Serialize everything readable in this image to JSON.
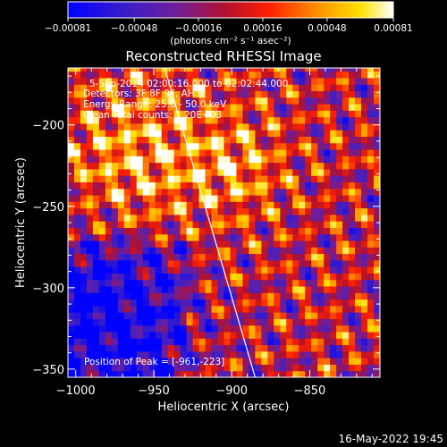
{
  "chart_data": {
    "type": "heatmap",
    "title": "Reconstructed RHESSI Image",
    "xlabel": "Heliocentric X (arcsec)",
    "ylabel": "Heliocentric Y (arcsec)",
    "xlim": [
      -1005,
      -805
    ],
    "ylim": [
      -355,
      -165
    ],
    "x_ticks": [
      -1000,
      -950,
      -900,
      -850
    ],
    "y_ticks": [
      -350,
      -300,
      -250,
      -200
    ],
    "x_tick_labels": [
      "−1000",
      "−950",
      "−900",
      "−850"
    ],
    "y_tick_labels": [
      "−350",
      "−300",
      "−250",
      "−200"
    ],
    "colorbar": {
      "min": -0.00081,
      "max": 0.00081,
      "ticks": [
        "-0.00081",
        "-0.00048",
        "-0.00016",
        "0.00016",
        "0.00048",
        "0.00081"
      ],
      "units": "(photons cm⁻² s⁻¹ asec⁻²)",
      "colormap": "blue-purple-red-orange-yellow-white"
    },
    "info_lines": [
      "5-Sep-2014 02:00:16.000 to 02:02:44.000",
      "Detectors: 3F 8F 9F, AH 0",
      "Energy Range: 25.0 - 50.0 keV",
      "Clean    Total counts: 1.20E+03"
    ],
    "peak_text": "Position of Peak = [-961,-223]",
    "peak": {
      "x": -961,
      "y": -223
    },
    "limb_line": [
      [
        -943,
        -165
      ],
      [
        -885,
        -355
      ]
    ],
    "timestamp": "16-May-2022 19:45"
  }
}
